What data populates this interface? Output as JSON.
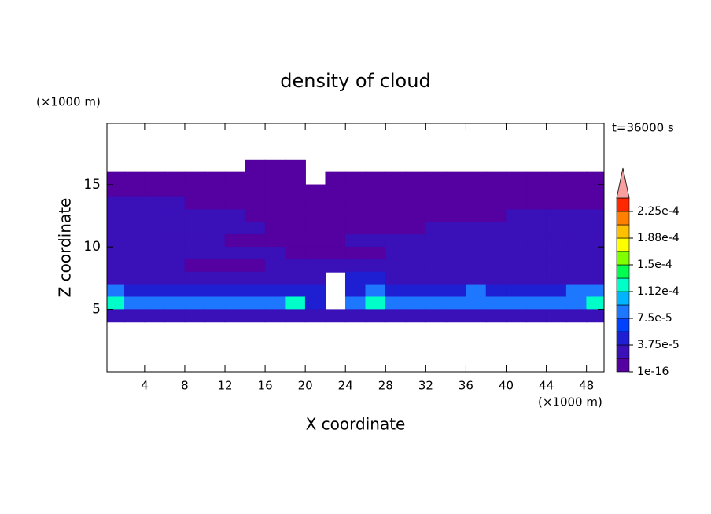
{
  "chart_data": {
    "type": "contour",
    "title": "density of cloud",
    "x_label": "X coordinate",
    "y_label": "Z coordinate",
    "x_unit": "(×1000 m)",
    "y_unit": "(×1000 m)",
    "annotation": "t=36000 s",
    "xlim": [
      0.25,
      49.75
    ],
    "ylim": [
      0,
      19.9
    ],
    "xticks": [
      4,
      8,
      12,
      16,
      20,
      24,
      28,
      32,
      36,
      40,
      44,
      48
    ],
    "yticks": [
      5,
      10,
      15
    ],
    "x": [
      1,
      3,
      5,
      7,
      9,
      11,
      13,
      15,
      17,
      19,
      21,
      23,
      25,
      27,
      29,
      31,
      33,
      35,
      37,
      39,
      41,
      43,
      45,
      47,
      49
    ],
    "y": [
      16.5,
      15.5,
      14.5,
      13.5,
      12.5,
      11.5,
      10.5,
      9.5,
      8.5,
      7.5,
      6.5,
      5.5,
      4.5
    ],
    "z": [
      [
        null,
        null,
        null,
        null,
        null,
        null,
        null,
        1e-05,
        1e-05,
        1e-05,
        null,
        null,
        null,
        null,
        null,
        null,
        null,
        null,
        null,
        null,
        null,
        null,
        null,
        null,
        null
      ],
      [
        1e-05,
        1e-05,
        1e-05,
        1e-05,
        1e-05,
        1e-05,
        1e-05,
        1e-05,
        1e-05,
        1e-05,
        null,
        1e-05,
        1e-05,
        1e-05,
        1e-05,
        1e-05,
        1e-05,
        1e-05,
        1e-05,
        1e-05,
        1e-05,
        1e-05,
        1e-05,
        1e-05,
        1e-05
      ],
      [
        1e-05,
        1e-05,
        1e-05,
        1e-05,
        1e-05,
        1e-05,
        1e-05,
        1e-05,
        1e-05,
        1e-05,
        1e-05,
        1e-05,
        1e-05,
        1e-05,
        1e-05,
        1e-05,
        1e-05,
        1e-05,
        1e-05,
        1e-05,
        1e-05,
        1e-05,
        1e-05,
        1e-05,
        1e-05
      ],
      [
        2.5e-05,
        2.5e-05,
        2.5e-05,
        2.5e-05,
        1e-05,
        1e-05,
        1e-05,
        1e-05,
        1e-05,
        1e-05,
        1e-05,
        1e-05,
        1e-05,
        1e-05,
        1e-05,
        1e-05,
        1e-05,
        1e-05,
        1e-05,
        1e-05,
        1e-05,
        1e-05,
        1e-05,
        1e-05,
        1e-05
      ],
      [
        2.5e-05,
        2.5e-05,
        2.5e-05,
        2.5e-05,
        2.5e-05,
        2.5e-05,
        2.5e-05,
        1e-05,
        1e-05,
        1e-05,
        1e-05,
        1e-05,
        1e-05,
        1e-05,
        1e-05,
        1e-05,
        1e-05,
        1e-05,
        1e-05,
        1e-05,
        2.5e-05,
        2.5e-05,
        2.5e-05,
        2.5e-05,
        2.5e-05
      ],
      [
        2.5e-05,
        2.5e-05,
        2.5e-05,
        2.5e-05,
        2.5e-05,
        2.5e-05,
        2.5e-05,
        2.5e-05,
        1e-05,
        1e-05,
        1e-05,
        1e-05,
        1e-05,
        1e-05,
        1e-05,
        1e-05,
        2.5e-05,
        2.5e-05,
        2.5e-05,
        2.5e-05,
        2.5e-05,
        2.5e-05,
        2.5e-05,
        2.5e-05,
        2.5e-05
      ],
      [
        2.5e-05,
        2.5e-05,
        2.5e-05,
        2.5e-05,
        2.5e-05,
        2.5e-05,
        1e-05,
        1e-05,
        1e-05,
        1e-05,
        1e-05,
        1e-05,
        2.5e-05,
        2.5e-05,
        2.5e-05,
        2.5e-05,
        2.5e-05,
        2.5e-05,
        2.5e-05,
        2.5e-05,
        2.5e-05,
        2.5e-05,
        2.5e-05,
        2.5e-05,
        2.5e-05
      ],
      [
        2.5e-05,
        2.5e-05,
        2.5e-05,
        2.5e-05,
        2.5e-05,
        2.5e-05,
        2.5e-05,
        2.5e-05,
        2.5e-05,
        1e-05,
        1e-05,
        1e-05,
        1e-05,
        1e-05,
        2.5e-05,
        2.5e-05,
        2.5e-05,
        2.5e-05,
        2.5e-05,
        2.5e-05,
        2.5e-05,
        2.5e-05,
        2.5e-05,
        2.5e-05,
        2.5e-05
      ],
      [
        2.5e-05,
        2.5e-05,
        2.5e-05,
        2.5e-05,
        1e-05,
        1e-05,
        1e-05,
        1e-05,
        2.5e-05,
        2.5e-05,
        2.5e-05,
        2.5e-05,
        2.5e-05,
        2.5e-05,
        2.5e-05,
        2.5e-05,
        2.5e-05,
        2.5e-05,
        2.5e-05,
        2.5e-05,
        2.5e-05,
        2.5e-05,
        2.5e-05,
        2.5e-05,
        2.5e-05
      ],
      [
        2.5e-05,
        2.5e-05,
        2.5e-05,
        2.5e-05,
        2.5e-05,
        2.5e-05,
        2.5e-05,
        2.5e-05,
        2.5e-05,
        2.5e-05,
        2.5e-05,
        null,
        5e-05,
        5e-05,
        2.5e-05,
        2.5e-05,
        2.5e-05,
        2.5e-05,
        2.5e-05,
        2.5e-05,
        2.5e-05,
        2.5e-05,
        2.5e-05,
        2.5e-05,
        2.5e-05
      ],
      [
        8e-05,
        5e-05,
        5e-05,
        5e-05,
        5e-05,
        5e-05,
        5e-05,
        5e-05,
        5e-05,
        5e-05,
        5e-05,
        null,
        5e-05,
        8e-05,
        5e-05,
        5e-05,
        5e-05,
        5e-05,
        8e-05,
        5e-05,
        5e-05,
        5e-05,
        5e-05,
        8e-05,
        8e-05
      ],
      [
        0.00012,
        8e-05,
        8e-05,
        8e-05,
        8e-05,
        8e-05,
        8e-05,
        8e-05,
        8e-05,
        0.00012,
        5e-05,
        null,
        8e-05,
        0.00012,
        8e-05,
        8e-05,
        8e-05,
        8e-05,
        8e-05,
        8e-05,
        8e-05,
        8e-05,
        8e-05,
        8e-05,
        0.00012
      ],
      [
        2.5e-05,
        2.5e-05,
        2.5e-05,
        2.5e-05,
        2.5e-05,
        2.5e-05,
        2.5e-05,
        2.5e-05,
        2.5e-05,
        2.5e-05,
        2.5e-05,
        2.5e-05,
        2.5e-05,
        2.5e-05,
        2.5e-05,
        2.5e-05,
        2.5e-05,
        2.5e-05,
        2.5e-05,
        2.5e-05,
        2.5e-05,
        2.5e-05,
        2.5e-05,
        2.5e-05,
        2.5e-05
      ]
    ],
    "levels": [
      1e-16,
      1.875e-05,
      3.75e-05,
      5.625e-05,
      7.5e-05,
      9.375e-05,
      0.0001125,
      0.00013125,
      0.00015,
      0.00016875,
      0.0001875,
      0.00020625,
      0.000225
    ],
    "colors": [
      "#5500a0",
      "#3a10b8",
      "#1e1ed2",
      "#0040ff",
      "#1e78ff",
      "#00b4ff",
      "#00ffc8",
      "#00ff50",
      "#80ff00",
      "#ffff00",
      "#ffc000",
      "#ff8000",
      "#ff2800"
    ],
    "extend_color": "#f8a0a0",
    "colorbar_ticks": [
      1e-16,
      {
        "value": 3.75e-05,
        "label": "3.75e-5"
      },
      {
        "value": 7.5e-05,
        "label": "7.5e-5"
      },
      {
        "value": 0.0001125,
        "label": "1.12e-4"
      },
      {
        "value": 0.00015,
        "label": "1.5e-4"
      },
      {
        "value": 0.0001875,
        "label": "1.88e-4"
      },
      {
        "value": 0.000225,
        "label": "2.25e-4"
      }
    ]
  }
}
